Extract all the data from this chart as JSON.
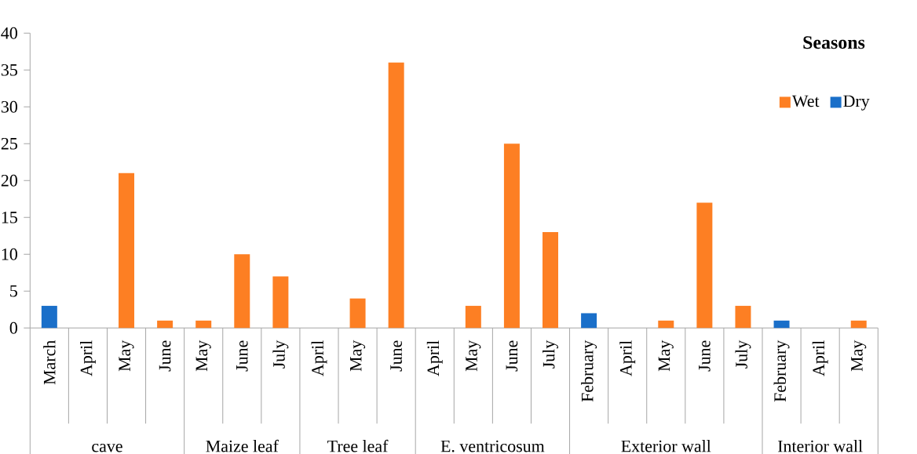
{
  "chart_data": {
    "type": "bar",
    "categories": [
      "March",
      "April",
      "May",
      "June",
      "May",
      "June",
      "July",
      "April",
      "May",
      "June",
      "April",
      "May",
      "June",
      "July",
      "February",
      "April",
      "May",
      "June",
      "July",
      "February",
      "April",
      "May"
    ],
    "series": [
      {
        "name": "Wet",
        "color": "#fd7f23",
        "values": [
          null,
          0,
          21,
          1,
          1,
          10,
          7,
          0,
          4,
          36,
          0,
          3,
          25,
          13,
          null,
          0,
          1,
          17,
          3,
          null,
          0,
          1
        ]
      },
      {
        "name": "Dry",
        "color": "#1a6fc9",
        "values": [
          3,
          null,
          null,
          null,
          null,
          null,
          null,
          null,
          null,
          null,
          null,
          null,
          null,
          null,
          2,
          null,
          null,
          null,
          null,
          1,
          null,
          null
        ]
      }
    ],
    "annotations": [
      "cave",
      "Maize leaf",
      "Tree leaf",
      "E. ventricosum",
      "Exterior wall",
      "Interior wall"
    ],
    "legend_title": "Seasons",
    "legend": "top right",
    "ylim": [
      0,
      40
    ],
    "yticks": [
      0,
      5,
      10,
      15,
      20,
      25,
      30,
      35,
      40
    ],
    "grid": false
  }
}
